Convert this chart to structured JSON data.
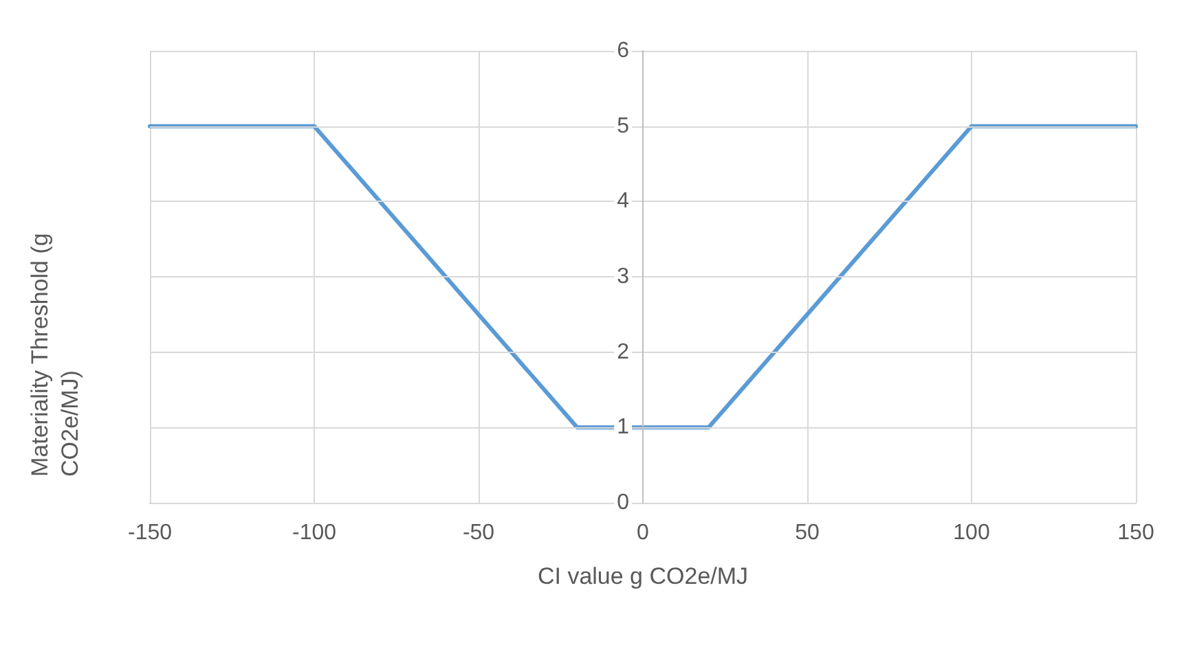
{
  "chart_data": {
    "type": "line",
    "xlabel": "CI value g CO2e/MJ",
    "ylabel": "Materiality Threshold (g CO2e/MJ)",
    "x": [
      -150,
      -100,
      -20,
      20,
      100,
      150
    ],
    "series": [
      {
        "color": "#5b9bd5",
        "values": [
          5,
          5,
          1,
          1,
          5,
          5
        ]
      }
    ],
    "xlim": [
      -150,
      150
    ],
    "xticks": [
      -150,
      -100,
      -50,
      0,
      50,
      100,
      150
    ],
    "ylim": [
      0,
      6
    ],
    "yticks": [
      0,
      1,
      2,
      3,
      4,
      5,
      6
    ],
    "grid": true,
    "marker": "none",
    "line_style": "solid"
  }
}
